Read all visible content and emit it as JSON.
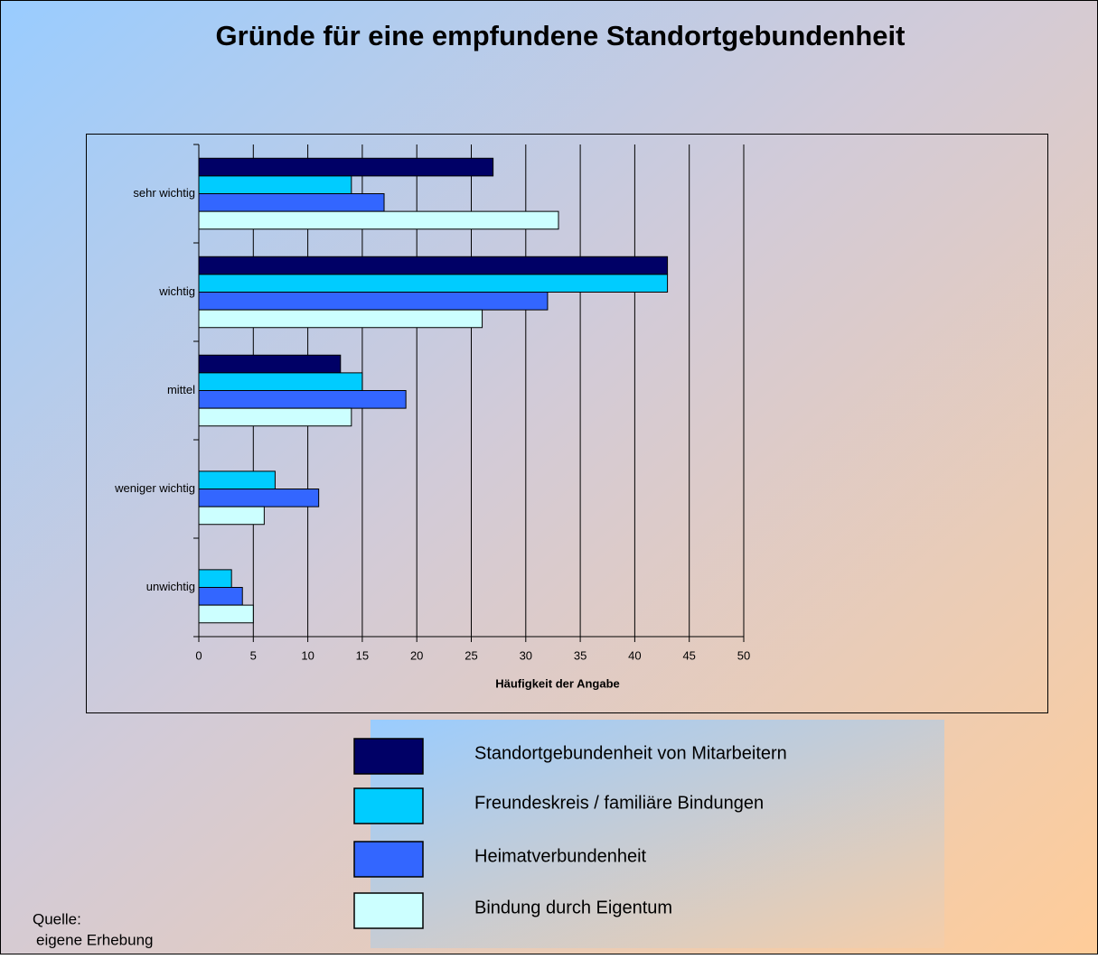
{
  "chart_data": {
    "type": "hbar",
    "title": "Gründe für eine empfundene Standortgebundenheit",
    "categories": [
      "sehr wichtig",
      "wichtig",
      "mittel",
      "weniger wichtig",
      "unwichtig"
    ],
    "series": [
      {
        "name": "Standortgebundenheit von Mitarbeitern",
        "color": "#000066",
        "values": [
          27,
          43,
          13,
          0,
          0
        ]
      },
      {
        "name": "Freundeskreis / familiäre Bindungen",
        "color": "#00ccff",
        "values": [
          14,
          43,
          15,
          7,
          3
        ]
      },
      {
        "name": "Heimatverbundenheit",
        "color": "#3366ff",
        "values": [
          17,
          32,
          19,
          11,
          4
        ]
      },
      {
        "name": "Bindung durch Eigentum",
        "color": "#ccffff",
        "values": [
          33,
          26,
          14,
          6,
          5
        ]
      }
    ],
    "xlabel": "Häufigkeit der Angabe",
    "xlim": [
      0,
      50
    ],
    "xticks": [
      0,
      5,
      10,
      15,
      20,
      25,
      30,
      35,
      40,
      45,
      50
    ],
    "grid": true,
    "source_label": "Quelle:",
    "source": "eigene Erhebung"
  }
}
